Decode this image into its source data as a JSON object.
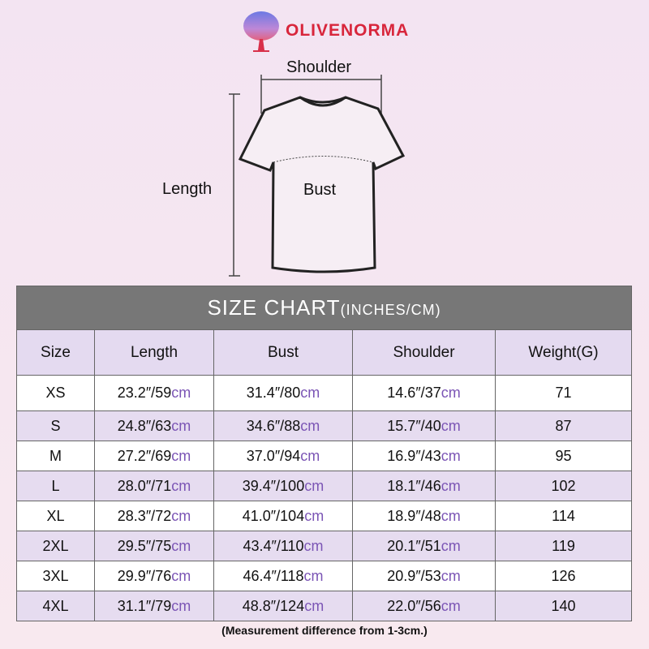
{
  "brand": "OLIVENORMA",
  "diagram": {
    "shoulder": "Shoulder",
    "length": "Length",
    "bust": "Bust"
  },
  "table": {
    "title": "SIZE CHART",
    "title_units": "(INCHES/CM)",
    "headers": [
      "Size",
      "Length",
      "Bust",
      "Shoulder",
      "Weight(G)"
    ],
    "unit": "cm",
    "rows": [
      {
        "size": "XS",
        "length": "23.2″/59",
        "bust": "31.4″/80",
        "shoulder": "14.6″/37",
        "weight": "71"
      },
      {
        "size": "S",
        "length": "24.8″/63",
        "bust": "34.6″/88",
        "shoulder": "15.7″/40",
        "weight": "87"
      },
      {
        "size": "M",
        "length": "27.2″/69",
        "bust": "37.0″/94",
        "shoulder": "16.9″/43",
        "weight": "95"
      },
      {
        "size": "L",
        "length": "28.0″/71",
        "bust": "39.4″/100",
        "shoulder": "18.1″/46",
        "weight": "102"
      },
      {
        "size": "XL",
        "length": "28.3″/72",
        "bust": "41.0″/104",
        "shoulder": "18.9″/48",
        "weight": "114"
      },
      {
        "size": "2XL",
        "length": "29.5″/75",
        "bust": "43.4″/110",
        "shoulder": "20.1″/51",
        "weight": "119"
      },
      {
        "size": "3XL",
        "length": "29.9″/76",
        "bust": "46.4″/118",
        "shoulder": "20.9″/53",
        "weight": "126"
      },
      {
        "size": "4XL",
        "length": "31.1″/79",
        "bust": "48.8″/124",
        "shoulder": "22.0″/56",
        "weight": "140"
      }
    ]
  },
  "note": "(Measurement difference from 1-3cm.)"
}
